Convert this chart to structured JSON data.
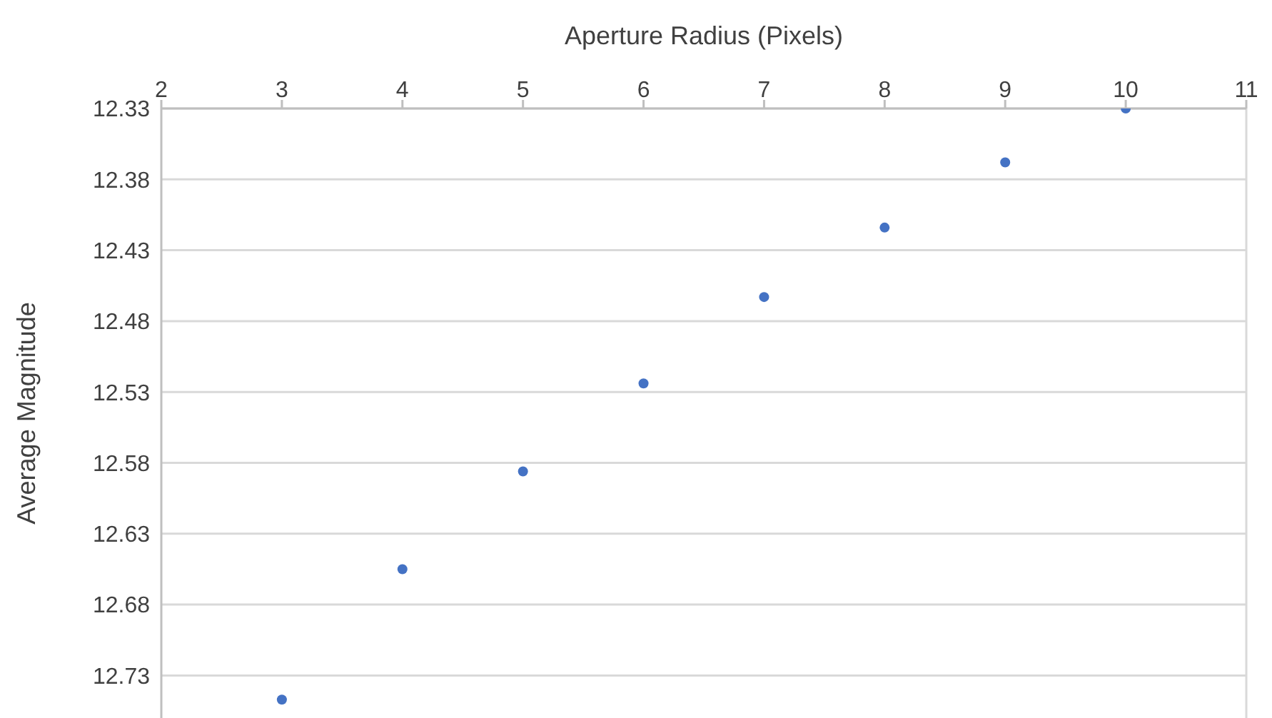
{
  "chart_data": {
    "type": "scatter",
    "xlabel": "Aperture Radius (Pixels)",
    "ylabel": "Average Magnitude",
    "x": [
      3,
      4,
      5,
      6,
      7,
      8,
      9,
      10
    ],
    "values": [
      12.747,
      12.655,
      12.586,
      12.524,
      12.463,
      12.414,
      12.368,
      12.33
    ],
    "color": "#4472c4",
    "marker": "circle",
    "xlim": [
      2,
      11
    ],
    "xticks": [
      2,
      3,
      4,
      5,
      6,
      7,
      8,
      9,
      10,
      11
    ],
    "ylim": [
      12.76,
      12.33
    ],
    "yticks": [
      12.33,
      12.38,
      12.43,
      12.48,
      12.53,
      12.58,
      12.63,
      12.68,
      12.73
    ],
    "grid": "y",
    "legend": false
  }
}
